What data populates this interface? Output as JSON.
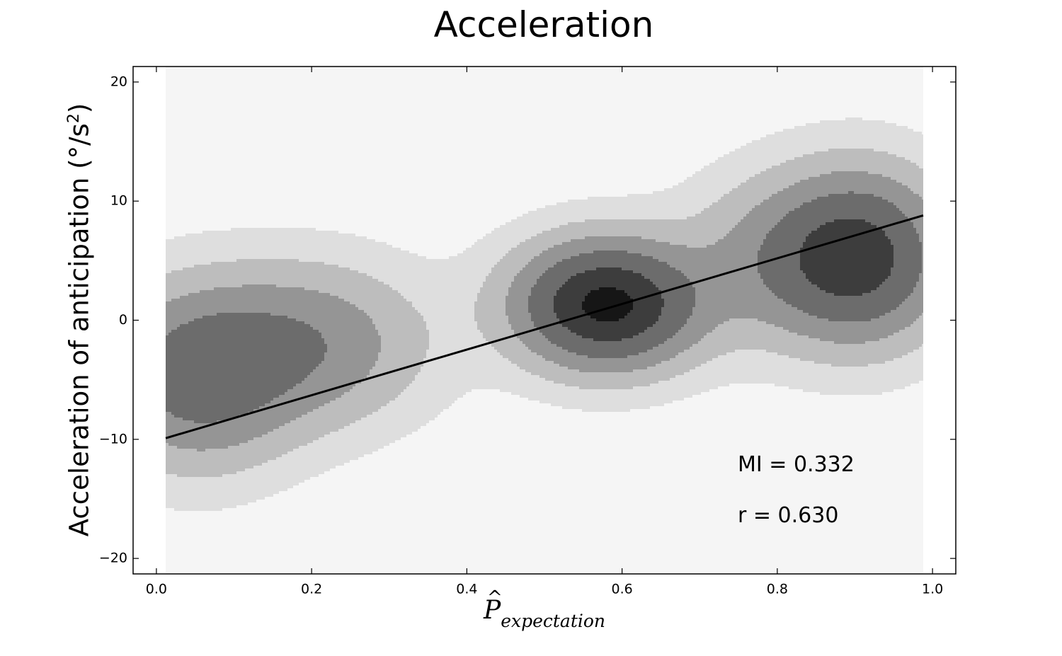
{
  "chart_data": {
    "type": "contour",
    "title": "Acceleration",
    "xlabel": "P̂_expectation",
    "xlabel_parts": {
      "main": "P",
      "sub": "expectation"
    },
    "ylabel": "Acceleration of anticipation (°/s",
    "ylabel_sup": "2",
    "ylabel_close": ")",
    "xlim": [
      -0.03,
      1.03
    ],
    "ylim": [
      -21.3,
      21.3
    ],
    "xticks": [
      0.0,
      0.2,
      0.4,
      0.6,
      0.8,
      1.0
    ],
    "xtick_labels": [
      "0.0",
      "0.2",
      "0.4",
      "0.6",
      "0.8",
      "1.0"
    ],
    "yticks": [
      20,
      10,
      0,
      -10,
      -20
    ],
    "ytick_labels": [
      "20",
      "10",
      "0",
      "−10",
      "−20"
    ],
    "grid": false,
    "colors": {
      "levels": [
        "#f5f5f5",
        "#dedede",
        "#bdbdbd",
        "#959595",
        "#6c6c6c",
        "#3d3d3d",
        "#161616"
      ],
      "line": "#000000"
    },
    "density_region": {
      "x": [
        0.012,
        0.988
      ],
      "y": [
        -21.3,
        21.3
      ]
    },
    "kde_components": [
      {
        "x": 0.05,
        "y": -4.8,
        "sx": 0.085,
        "sy": 5.0,
        "w": 0.55
      },
      {
        "x": 0.2,
        "y": -2.0,
        "sx": 0.1,
        "sy": 4.5,
        "w": 0.4
      },
      {
        "x": 0.58,
        "y": 1.3,
        "sx": 0.08,
        "sy": 3.6,
        "w": 1.0
      },
      {
        "x": 0.8,
        "y": 5.2,
        "sx": 0.08,
        "sy": 4.6,
        "w": 0.3
      },
      {
        "x": 0.91,
        "y": 5.3,
        "sx": 0.075,
        "sy": 4.8,
        "w": 0.75
      }
    ],
    "regression_line": {
      "x": [
        0.012,
        0.988
      ],
      "y": [
        -9.9,
        8.8
      ]
    },
    "annotations": [
      "MI = 0.332",
      "r = 0.630"
    ]
  }
}
